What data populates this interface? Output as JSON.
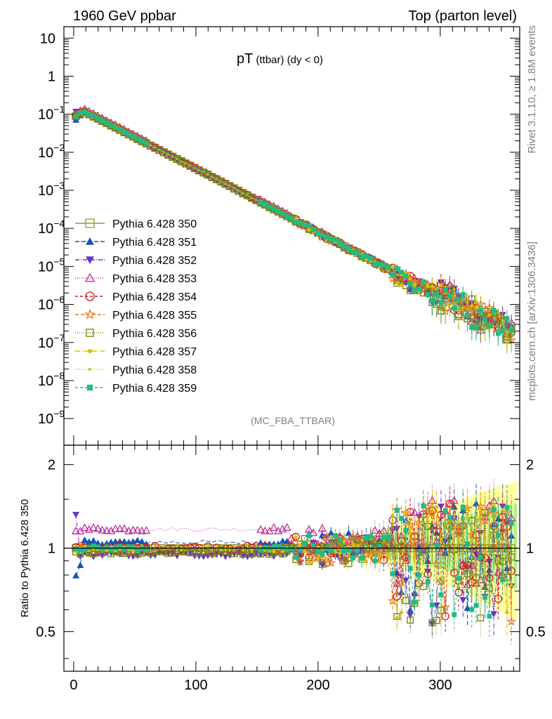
{
  "header": {
    "left": "1960 GeV ppbar",
    "right": "Top (parton level)"
  },
  "side": {
    "rivet": "Rivet 3.1.10, ≥ 1.8M events",
    "mcplots": "mcplots.cern.ch [arXiv:1306.3436]"
  },
  "main": {
    "title_main": "pT",
    "title_sub": " (ttbar) (dy < 0)",
    "analysis": "(MC_FBA_TTBAR)"
  },
  "ratio": {
    "ylabel": "Ratio to Pythia 6.428 350"
  },
  "chart_data": {
    "type": "scatter",
    "title": "pT (ttbar) (dy < 0)",
    "xlabel": "",
    "ylabel": "",
    "x_range": [
      -8,
      365
    ],
    "y_range": [
      2e-10,
      20
    ],
    "y_scale": "log",
    "ratio_range": [
      0.36,
      2.35
    ],
    "x_ticks": [
      0,
      100,
      200,
      300
    ],
    "y_ticks": [
      {
        "v": 10,
        "label": "10"
      },
      {
        "v": 1,
        "label": "1"
      },
      {
        "v": 0.1,
        "label": "10",
        "exp": "−1"
      },
      {
        "v": 0.01,
        "label": "10",
        "exp": "−2"
      },
      {
        "v": 0.001,
        "label": "10",
        "exp": "−3"
      },
      {
        "v": 0.0001,
        "label": "10",
        "exp": "−4"
      },
      {
        "v": 1e-05,
        "label": "10",
        "exp": "−5"
      },
      {
        "v": 1e-06,
        "label": "10",
        "exp": "−6"
      },
      {
        "v": 1e-07,
        "label": "10",
        "exp": "−7"
      },
      {
        "v": 1e-08,
        "label": "10",
        "exp": "−8"
      },
      {
        "v": 1e-09,
        "label": "10",
        "exp": "−9"
      }
    ],
    "ratio_ticks": [
      {
        "v": 0.5,
        "label": "0.5"
      },
      {
        "v": 1,
        "label": "1"
      },
      {
        "v": 2,
        "label": "2"
      }
    ],
    "reference_line": 1,
    "legend_position": "left-middle",
    "series": [
      {
        "name": "Pythia 6.428 350",
        "color": "#999933",
        "marker": "square-open",
        "dash": "",
        "ratio_offset": 1.0
      },
      {
        "name": "Pythia 6.428 351",
        "color": "#1155bb",
        "marker": "triangle-up",
        "dash": "6,3",
        "ratio_offset": 1.05
      },
      {
        "name": "Pythia 6.428 352",
        "color": "#6633cc",
        "marker": "triangle-down",
        "dash": "6,2,1,2",
        "ratio_offset": 0.95
      },
      {
        "name": "Pythia 6.428 353",
        "color": "#bb3399",
        "marker": "triangle-open",
        "dash": "1,2",
        "ratio_offset": 1.17
      },
      {
        "name": "Pythia 6.428 354",
        "color": "#dd1111",
        "marker": "circle-open",
        "dash": "4,3",
        "ratio_offset": 1.0
      },
      {
        "name": "Pythia 6.428 355",
        "color": "#ee7722",
        "marker": "star-open",
        "dash": "5,3",
        "ratio_offset": 0.98
      },
      {
        "name": "Pythia 6.428 356",
        "color": "#778811",
        "marker": "square-open-small",
        "dash": "1,2",
        "ratio_offset": 0.97
      },
      {
        "name": "Pythia 6.428 357",
        "color": "#ddbb00",
        "marker": "dot",
        "dash": "7,2,1,2",
        "ratio_offset": 0.99
      },
      {
        "name": "Pythia 6.428 358",
        "color": "#bbcc22",
        "marker": "dot-small",
        "dash": "1,2",
        "ratio_offset": 1.0
      },
      {
        "name": "Pythia 6.428 359",
        "color": "#22bb88",
        "marker": "square",
        "dash": "4,3",
        "ratio_offset": 1.0
      }
    ]
  }
}
